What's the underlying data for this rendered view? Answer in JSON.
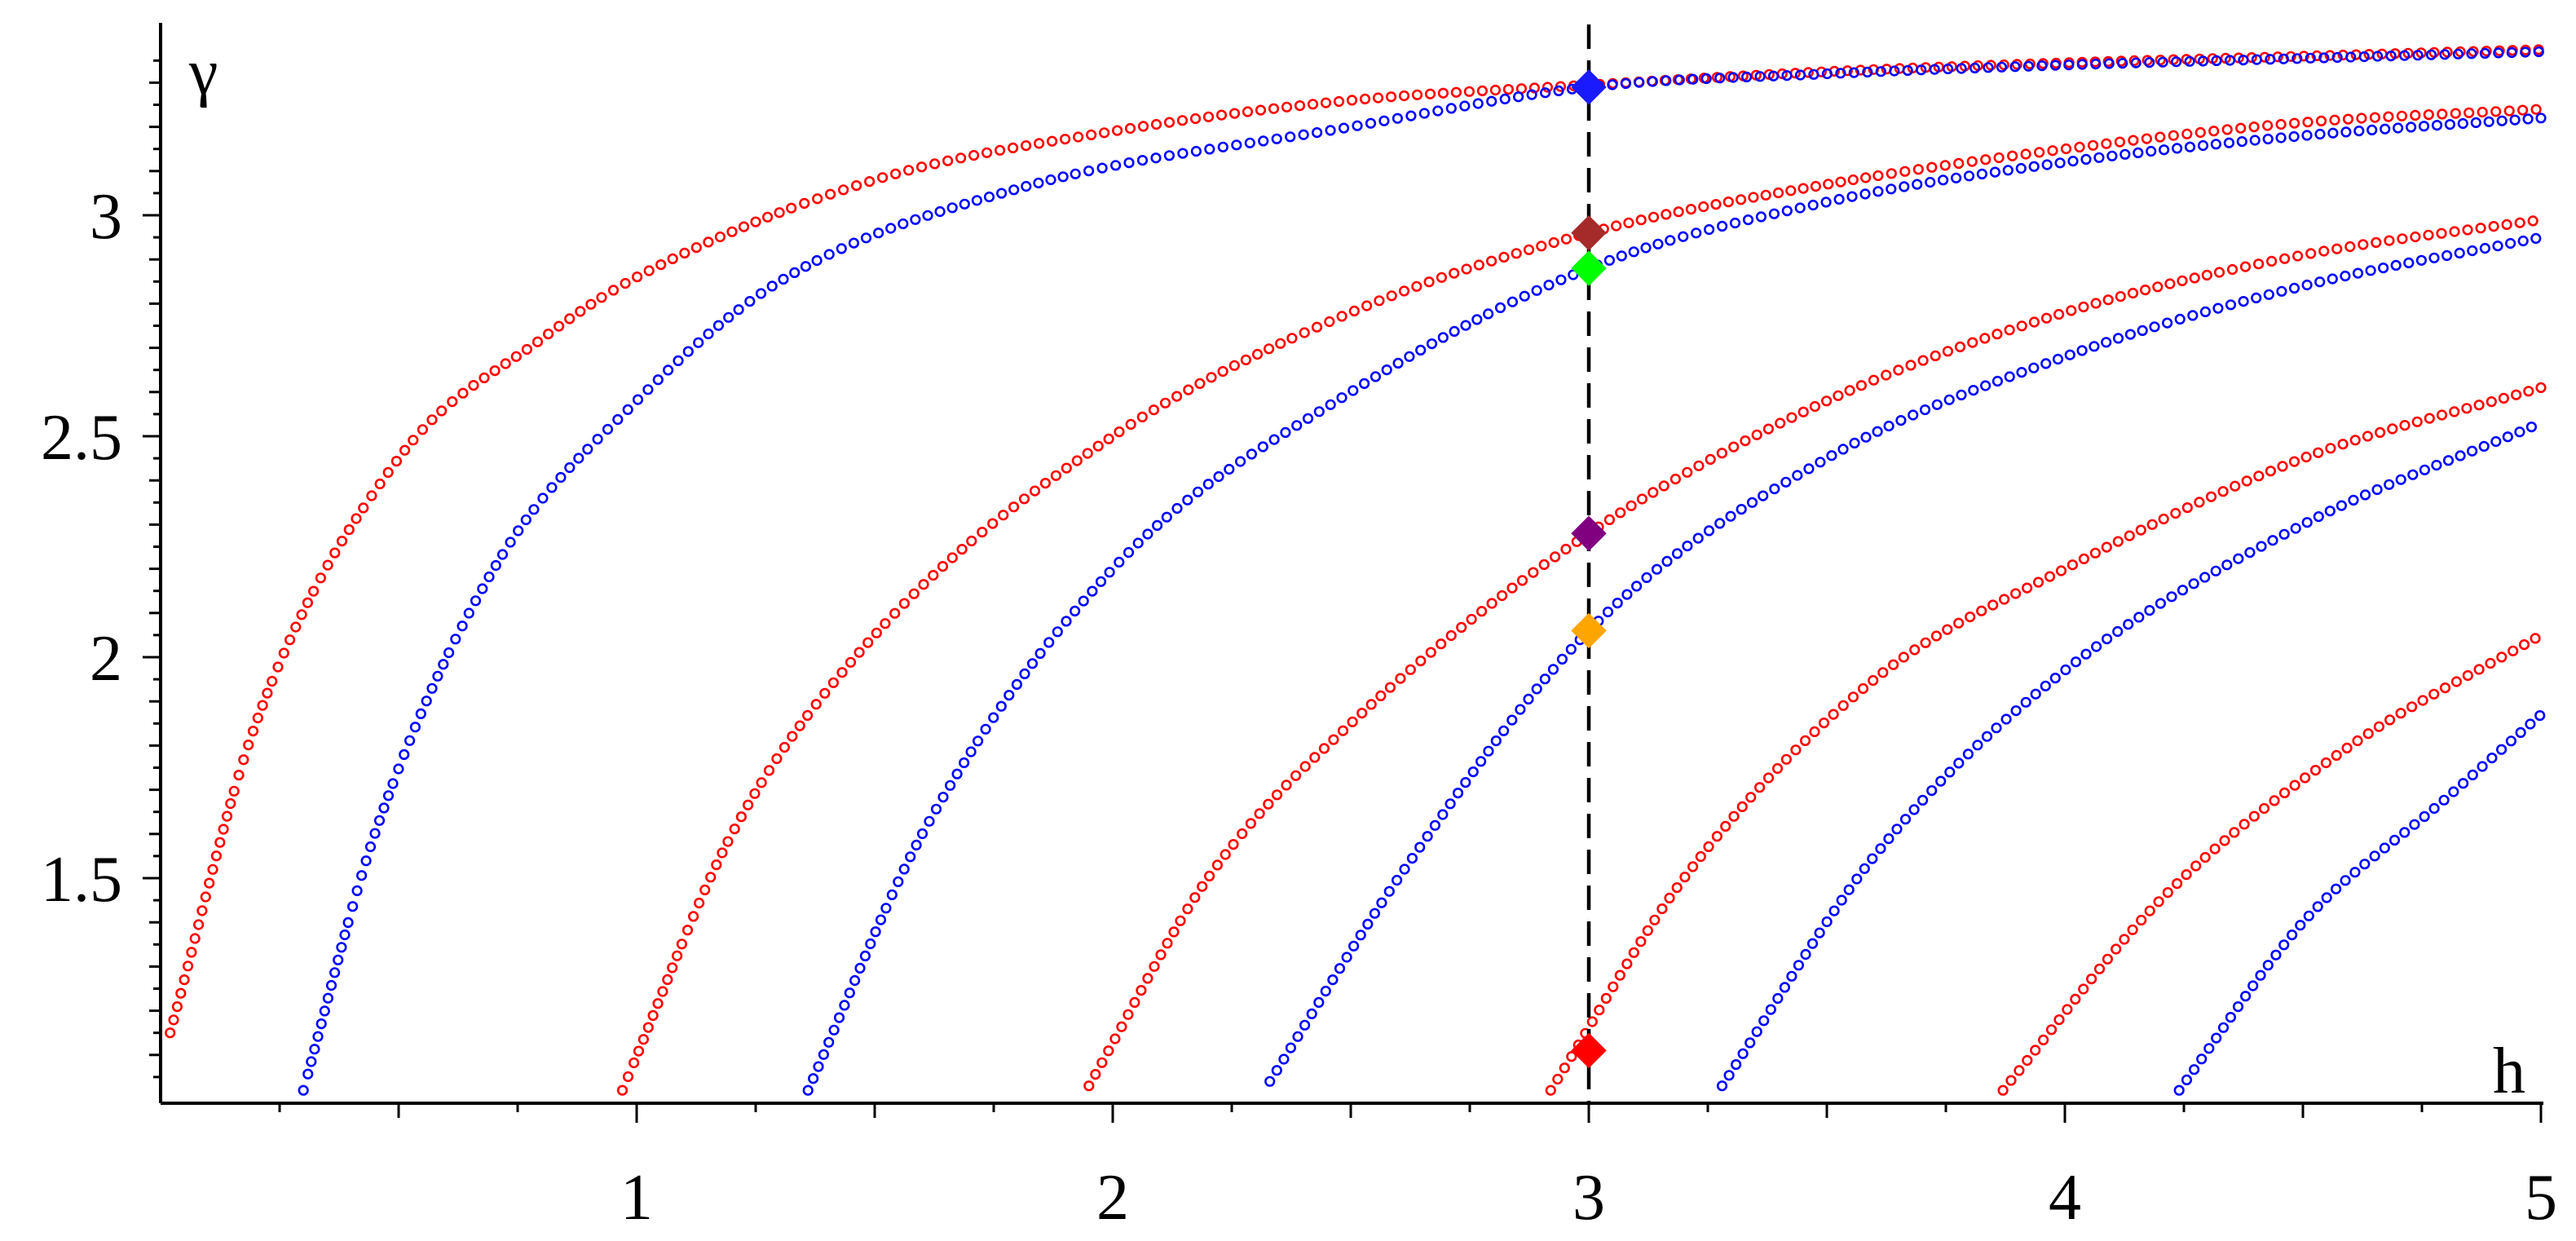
{
  "chart_data": {
    "type": "scatter",
    "title": "",
    "xlabel": "h",
    "ylabel": "γ",
    "xlim": [
      0,
      5
    ],
    "ylim": [
      1,
      3.35
    ],
    "x_ticks": [
      1,
      2,
      3,
      4,
      5
    ],
    "x_tick_labels": [
      "1",
      "2",
      "3",
      "4",
      "5"
    ],
    "y_ticks": [
      1.5,
      2,
      2.5,
      3
    ],
    "y_tick_labels": [
      "1.5",
      "2",
      "2.5",
      "3"
    ],
    "grid": false,
    "legend": "none",
    "marker": "open-circle",
    "colors": {
      "red": "#ff0000",
      "blue": "#0000ff",
      "dashed_line": "#000000"
    },
    "series": [
      {
        "color": "#ff0000",
        "points": [
          [
            0.02,
            1.15
          ],
          [
            0.2,
            1.85
          ],
          [
            0.5,
            2.45
          ],
          [
            0.8,
            2.72
          ],
          [
            1.0,
            2.86
          ],
          [
            1.5,
            3.08
          ],
          [
            2.0,
            3.19
          ],
          [
            2.5,
            3.26
          ],
          [
            3.0,
            3.295
          ],
          [
            3.5,
            3.325
          ],
          [
            4.0,
            3.345
          ],
          [
            4.5,
            3.36
          ],
          [
            5.0,
            3.375
          ]
        ]
      },
      {
        "color": "#0000ff",
        "points": [
          [
            0.3,
            1.02
          ],
          [
            0.45,
            1.6
          ],
          [
            0.7,
            2.2
          ],
          [
            1.0,
            2.58
          ],
          [
            1.3,
            2.85
          ],
          [
            1.8,
            3.06
          ],
          [
            2.5,
            3.2
          ],
          [
            3.0,
            3.29
          ],
          [
            3.5,
            3.32
          ],
          [
            4.0,
            3.34
          ],
          [
            4.5,
            3.355
          ],
          [
            5.0,
            3.37
          ]
        ]
      },
      {
        "color": "#ff0000",
        "points": [
          [
            0.97,
            1.02
          ],
          [
            1.2,
            1.6
          ],
          [
            1.5,
            2.05
          ],
          [
            2.0,
            2.5
          ],
          [
            2.5,
            2.78
          ],
          [
            3.0,
            2.96
          ],
          [
            3.5,
            3.07
          ],
          [
            4.0,
            3.15
          ],
          [
            4.5,
            3.21
          ],
          [
            5.0,
            3.24
          ]
        ]
      },
      {
        "color": "#0000ff",
        "points": [
          [
            1.36,
            1.02
          ],
          [
            1.6,
            1.6
          ],
          [
            2.0,
            2.2
          ],
          [
            2.5,
            2.6
          ],
          [
            3.0,
            2.88
          ],
          [
            3.5,
            3.03
          ],
          [
            4.0,
            3.12
          ],
          [
            4.5,
            3.18
          ],
          [
            5.0,
            3.22
          ]
        ]
      },
      {
        "color": "#ff0000",
        "points": [
          [
            1.95,
            1.03
          ],
          [
            2.2,
            1.5
          ],
          [
            2.5,
            1.85
          ],
          [
            3.0,
            2.28
          ],
          [
            3.5,
            2.58
          ],
          [
            4.0,
            2.78
          ],
          [
            4.5,
            2.91
          ],
          [
            5.0,
            2.99
          ]
        ]
      },
      {
        "color": "#0000ff",
        "points": [
          [
            2.33,
            1.04
          ],
          [
            2.6,
            1.5
          ],
          [
            3.0,
            2.06
          ],
          [
            3.5,
            2.45
          ],
          [
            4.0,
            2.68
          ],
          [
            4.5,
            2.84
          ],
          [
            5.0,
            2.95
          ]
        ]
      },
      {
        "color": "#ff0000",
        "points": [
          [
            2.92,
            1.02
          ],
          [
            3.2,
            1.5
          ],
          [
            3.6,
            1.95
          ],
          [
            4.0,
            2.2
          ],
          [
            4.5,
            2.45
          ],
          [
            5.0,
            2.61
          ]
        ]
      },
      {
        "color": "#0000ff",
        "points": [
          [
            3.28,
            1.03
          ],
          [
            3.6,
            1.55
          ],
          [
            4.0,
            1.97
          ],
          [
            4.5,
            2.3
          ],
          [
            5.0,
            2.53
          ]
        ]
      },
      {
        "color": "#ff0000",
        "points": [
          [
            3.87,
            1.02
          ],
          [
            4.2,
            1.45
          ],
          [
            4.6,
            1.8
          ],
          [
            5.0,
            2.05
          ]
        ]
      },
      {
        "color": "#0000ff",
        "points": [
          [
            4.24,
            1.02
          ],
          [
            4.5,
            1.4
          ],
          [
            4.8,
            1.68
          ],
          [
            5.0,
            1.87
          ]
        ]
      }
    ],
    "reference_line": {
      "x": 3,
      "style": "dashed",
      "color": "#000000"
    },
    "highlight_markers": [
      {
        "x": 3,
        "y": 3.29,
        "color": "#1a1aff",
        "shape": "diamond"
      },
      {
        "x": 3,
        "y": 2.96,
        "color": "#a52a2a",
        "shape": "diamond"
      },
      {
        "x": 3,
        "y": 2.88,
        "color": "#00ff00",
        "shape": "diamond"
      },
      {
        "x": 3,
        "y": 2.28,
        "color": "#800080",
        "shape": "diamond"
      },
      {
        "x": 3,
        "y": 2.06,
        "color": "#ffa500",
        "shape": "diamond"
      },
      {
        "x": 3,
        "y": 1.11,
        "color": "#ff0000",
        "shape": "diamond"
      }
    ]
  }
}
